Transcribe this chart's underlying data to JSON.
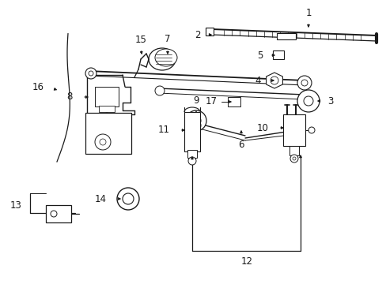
{
  "bg_color": "#ffffff",
  "line_color": "#1a1a1a",
  "fig_width": 4.89,
  "fig_height": 3.6,
  "dpi": 100,
  "font_size": 8.5
}
